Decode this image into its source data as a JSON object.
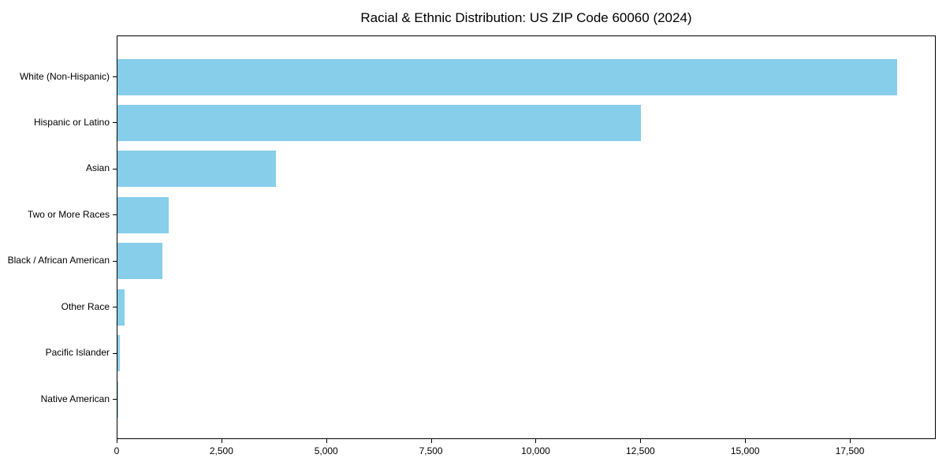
{
  "chart_data": {
    "type": "bar",
    "orientation": "horizontal",
    "title": "Racial & Ethnic Distribution: US ZIP Code 60060 (2024)",
    "categories": [
      "White (Non-Hispanic)",
      "Hispanic or Latino",
      "Asian",
      "Two or More Races",
      "Black / African American",
      "Other Race",
      "Pacific Islander",
      "Native American"
    ],
    "values": [
      18600,
      12500,
      3780,
      1220,
      1080,
      170,
      65,
      15
    ],
    "xlabel": "",
    "ylabel": "",
    "xlim": [
      0,
      19550
    ],
    "x_ticks": [
      0,
      2500,
      5000,
      7500,
      10000,
      12500,
      15000,
      17500
    ],
    "x_tick_labels": [
      "0",
      "2,500",
      "5,000",
      "7,500",
      "10,000",
      "12,500",
      "15,000",
      "17,500"
    ],
    "bar_color": "#87CEEB",
    "axis_color": "#000000",
    "grid": false,
    "legend_position": "none"
  }
}
